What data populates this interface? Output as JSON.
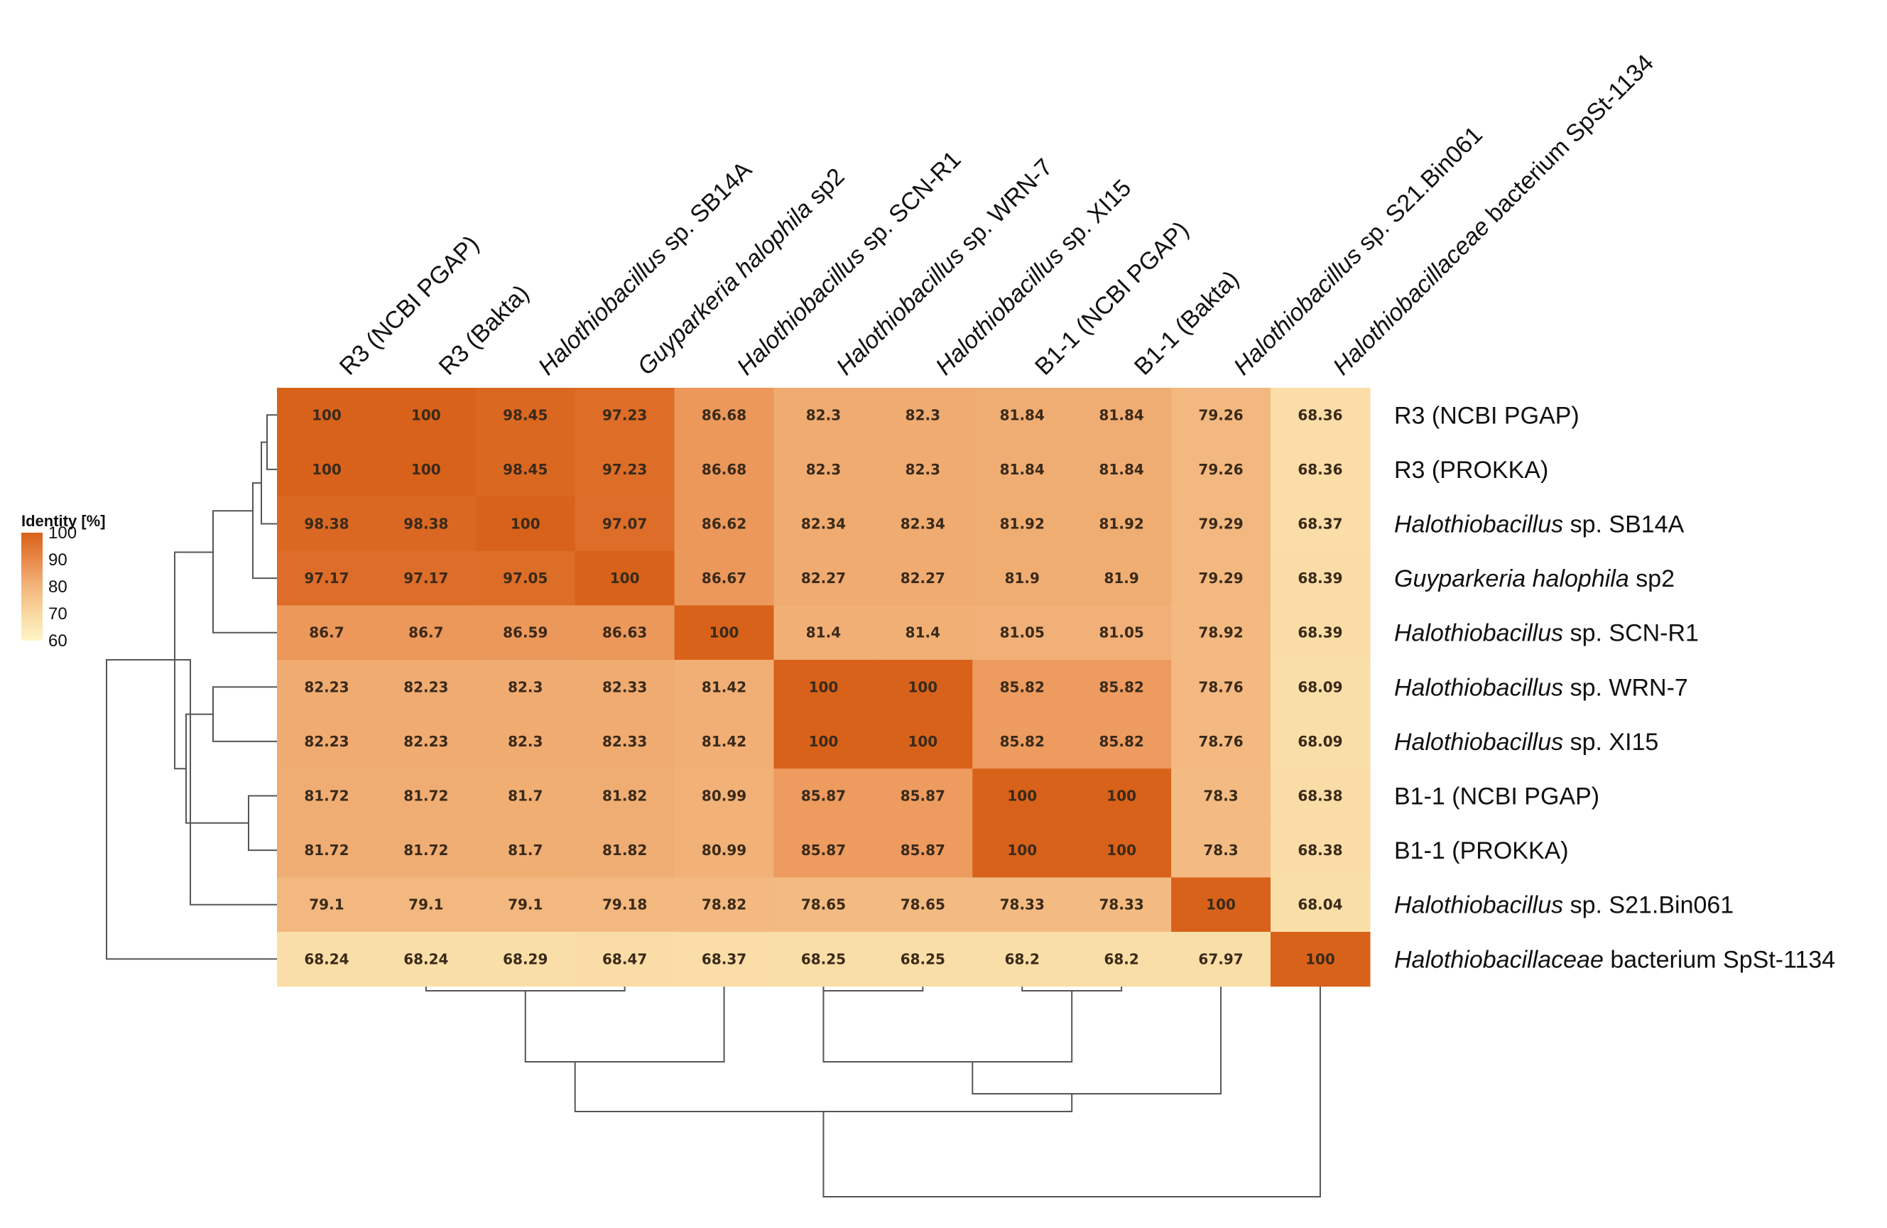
{
  "chart_data": {
    "type": "heatmap",
    "title": "",
    "legend": {
      "title": "Identity [%]",
      "ticks": [
        100,
        90,
        80,
        70,
        60
      ],
      "range": [
        60,
        100
      ],
      "colors": [
        "#fff4c8",
        "#f9d9a0",
        "#f2b57c",
        "#e9894a",
        "#d8621a"
      ]
    },
    "column_labels": [
      [
        {
          "t": "R3 (NCBI PGAP)",
          "i": false
        }
      ],
      [
        {
          "t": "R3 (Bakta)",
          "i": false
        }
      ],
      [
        {
          "t": "Halothiobacillus",
          "i": true
        },
        {
          "t": " sp. SB14A",
          "i": false
        }
      ],
      [
        {
          "t": "Guyparkeria halophila",
          "i": true
        },
        {
          "t": " sp2",
          "i": false
        }
      ],
      [
        {
          "t": "Halothiobacillus",
          "i": true
        },
        {
          "t": " sp. SCN-R1",
          "i": false
        }
      ],
      [
        {
          "t": "Halothiobacillus",
          "i": true
        },
        {
          "t": " sp. WRN-7",
          "i": false
        }
      ],
      [
        {
          "t": "Halothiobacillus",
          "i": true
        },
        {
          "t": " sp. XI15",
          "i": false
        }
      ],
      [
        {
          "t": "B1-1 (NCBI PGAP)",
          "i": false
        }
      ],
      [
        {
          "t": "B1-1 (Bakta)",
          "i": false
        }
      ],
      [
        {
          "t": "Halothiobacillus",
          "i": true
        },
        {
          "t": " sp. S21.Bin061",
          "i": false
        }
      ],
      [
        {
          "t": "Halothiobacillaceae",
          "i": true
        },
        {
          "t": " bacterium SpSt-1134",
          "i": false
        }
      ]
    ],
    "row_labels": [
      [
        {
          "t": "R3 (NCBI PGAP)",
          "i": false
        }
      ],
      [
        {
          "t": "R3 (PROKKA)",
          "i": false
        }
      ],
      [
        {
          "t": "Halothiobacillus",
          "i": true
        },
        {
          "t": " sp. SB14A",
          "i": false
        }
      ],
      [
        {
          "t": "Guyparkeria halophila",
          "i": true
        },
        {
          "t": " sp2",
          "i": false
        }
      ],
      [
        {
          "t": "Halothiobacillus",
          "i": true
        },
        {
          "t": " sp. SCN-R1",
          "i": false
        }
      ],
      [
        {
          "t": "Halothiobacillus",
          "i": true
        },
        {
          "t": " sp. WRN-7",
          "i": false
        }
      ],
      [
        {
          "t": "Halothiobacillus",
          "i": true
        },
        {
          "t": " sp. XI15",
          "i": false
        }
      ],
      [
        {
          "t": "B1-1 (NCBI PGAP)",
          "i": false
        }
      ],
      [
        {
          "t": "B1-1 (PROKKA)",
          "i": false
        }
      ],
      [
        {
          "t": "Halothiobacillus",
          "i": true
        },
        {
          "t": " sp. S21.Bin061",
          "i": false
        }
      ],
      [
        {
          "t": "Halothiobacillaceae",
          "i": true
        },
        {
          "t": " bacterium SpSt-1134",
          "i": false
        }
      ]
    ],
    "values": [
      [
        "100",
        "100",
        "98.45",
        "97.23",
        "86.68",
        "82.3",
        "82.3",
        "81.84",
        "81.84",
        "79.26",
        "68.36"
      ],
      [
        "100",
        "100",
        "98.45",
        "97.23",
        "86.68",
        "82.3",
        "82.3",
        "81.84",
        "81.84",
        "79.26",
        "68.36"
      ],
      [
        "98.38",
        "98.38",
        "100",
        "97.07",
        "86.62",
        "82.34",
        "82.34",
        "81.92",
        "81.92",
        "79.29",
        "68.37"
      ],
      [
        "97.17",
        "97.17",
        "97.05",
        "100",
        "86.67",
        "82.27",
        "82.27",
        "81.9",
        "81.9",
        "79.29",
        "68.39"
      ],
      [
        "86.7",
        "86.7",
        "86.59",
        "86.63",
        "100",
        "81.4",
        "81.4",
        "81.05",
        "81.05",
        "78.92",
        "68.39"
      ],
      [
        "82.23",
        "82.23",
        "82.3",
        "82.33",
        "81.42",
        "100",
        "100",
        "85.82",
        "85.82",
        "78.76",
        "68.09"
      ],
      [
        "82.23",
        "82.23",
        "82.3",
        "82.33",
        "81.42",
        "100",
        "100",
        "85.82",
        "85.82",
        "78.76",
        "68.09"
      ],
      [
        "81.72",
        "81.72",
        "81.7",
        "81.82",
        "80.99",
        "85.87",
        "85.87",
        "100",
        "100",
        "78.3",
        "68.38"
      ],
      [
        "81.72",
        "81.72",
        "81.7",
        "81.82",
        "80.99",
        "85.87",
        "85.87",
        "100",
        "100",
        "78.3",
        "68.38"
      ],
      [
        "79.1",
        "79.1",
        "79.1",
        "79.18",
        "78.82",
        "78.65",
        "78.65",
        "78.33",
        "78.33",
        "100",
        "68.04"
      ],
      [
        "68.24",
        "68.24",
        "68.29",
        "68.47",
        "68.37",
        "68.25",
        "68.25",
        "68.2",
        "68.2",
        "67.97",
        "100"
      ]
    ],
    "dendrogram": "hierarchical clustering (rows left, columns bottom)"
  }
}
